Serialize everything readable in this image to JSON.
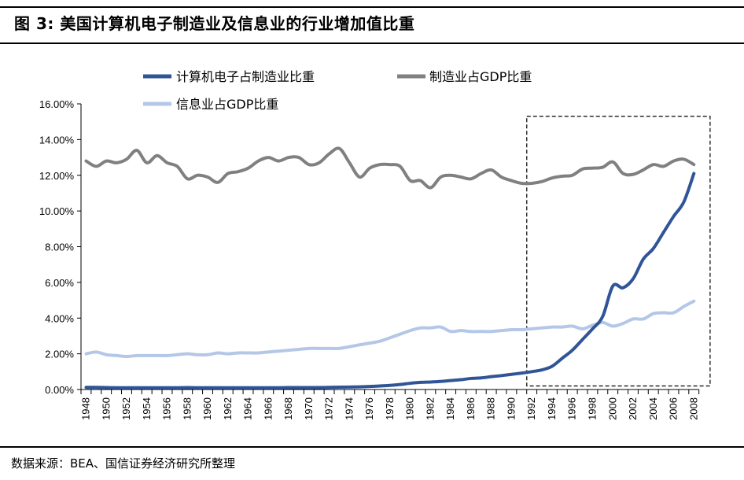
{
  "title": "图 3:  美国计算机电子制造业及信息业的行业增加值比重",
  "source": "数据来源：BEA、国信证券经济研究所整理",
  "chart_data": {
    "type": "line",
    "title": "图 3:  美国计算机电子制造业及信息业的行业增加值比重",
    "xlabel": "",
    "ylabel": "",
    "ylim": [
      0,
      16
    ],
    "y_ticks": [
      "0.00%",
      "2.00%",
      "4.00%",
      "6.00%",
      "8.00%",
      "10.00%",
      "12.00%",
      "14.00%",
      "16.00%"
    ],
    "x_tick_labels": [
      "1948",
      "1950",
      "1952",
      "1954",
      "1956",
      "1958",
      "1960",
      "1962",
      "1964",
      "1966",
      "1968",
      "1970",
      "1972",
      "1974",
      "1976",
      "1978",
      "1980",
      "1982",
      "1984",
      "1986",
      "1988",
      "1990",
      "1992",
      "1994",
      "1996",
      "1998",
      "2000",
      "2002",
      "2004",
      "2006",
      "2008"
    ],
    "x": [
      1948,
      1949,
      1950,
      1951,
      1952,
      1953,
      1954,
      1955,
      1956,
      1957,
      1958,
      1959,
      1960,
      1961,
      1962,
      1963,
      1964,
      1965,
      1966,
      1967,
      1968,
      1969,
      1970,
      1971,
      1972,
      1973,
      1974,
      1975,
      1976,
      1977,
      1978,
      1979,
      1980,
      1981,
      1982,
      1983,
      1984,
      1985,
      1986,
      1987,
      1988,
      1989,
      1990,
      1991,
      1992,
      1993,
      1994,
      1995,
      1996,
      1997,
      1998,
      1999,
      2000,
      2001,
      2002,
      2003,
      2004,
      2005,
      2006,
      2007,
      2008
    ],
    "grid": false,
    "legend_position": "top",
    "highlight_box": {
      "x_range": [
        1991.5,
        2009.6
      ],
      "y_range": [
        0.2,
        15.3
      ],
      "style": "dashed"
    },
    "series": [
      {
        "name": "计算机电子占制造业比重",
        "color": "#2f5597",
        "values": [
          0.12,
          0.12,
          0.11,
          0.1,
          0.1,
          0.1,
          0.1,
          0.1,
          0.1,
          0.1,
          0.11,
          0.1,
          0.1,
          0.1,
          0.1,
          0.1,
          0.1,
          0.1,
          0.1,
          0.1,
          0.11,
          0.11,
          0.11,
          0.11,
          0.12,
          0.13,
          0.14,
          0.15,
          0.17,
          0.2,
          0.23,
          0.28,
          0.35,
          0.4,
          0.42,
          0.45,
          0.5,
          0.55,
          0.62,
          0.65,
          0.72,
          0.78,
          0.85,
          0.92,
          1.0,
          1.1,
          1.3,
          1.75,
          2.2,
          2.8,
          3.4,
          4.1,
          5.8,
          5.7,
          6.2,
          7.3,
          7.9,
          8.8,
          9.7,
          10.5,
          12.1
        ]
      },
      {
        "name": "制造业占GDP比重",
        "color": "#808080",
        "values": [
          12.8,
          12.5,
          12.8,
          12.7,
          12.9,
          13.4,
          12.7,
          13.1,
          12.7,
          12.5,
          11.8,
          12.0,
          11.9,
          11.6,
          12.1,
          12.2,
          12.4,
          12.8,
          13.0,
          12.8,
          13.0,
          13.0,
          12.6,
          12.7,
          13.2,
          13.5,
          12.7,
          11.9,
          12.4,
          12.6,
          12.6,
          12.5,
          11.7,
          11.7,
          11.3,
          11.9,
          12.0,
          11.9,
          11.8,
          12.1,
          12.3,
          11.9,
          11.7,
          11.55,
          11.55,
          11.65,
          11.85,
          11.95,
          12.0,
          12.35,
          12.4,
          12.45,
          12.75,
          12.1,
          12.05,
          12.3,
          12.6,
          12.5,
          12.8,
          12.9,
          12.6
        ]
      },
      {
        "name": "信息业占GDP比重",
        "color": "#b4c7e7",
        "values": [
          2.0,
          2.1,
          1.95,
          1.9,
          1.85,
          1.9,
          1.9,
          1.9,
          1.9,
          1.95,
          2.0,
          1.95,
          1.95,
          2.05,
          2.0,
          2.05,
          2.05,
          2.05,
          2.1,
          2.15,
          2.2,
          2.25,
          2.3,
          2.3,
          2.3,
          2.3,
          2.4,
          2.5,
          2.6,
          2.7,
          2.9,
          3.1,
          3.3,
          3.45,
          3.45,
          3.5,
          3.25,
          3.3,
          3.25,
          3.25,
          3.25,
          3.3,
          3.35,
          3.35,
          3.4,
          3.45,
          3.5,
          3.5,
          3.55,
          3.4,
          3.6,
          3.75,
          3.55,
          3.7,
          3.95,
          3.95,
          4.25,
          4.3,
          4.3,
          4.65,
          4.95
        ]
      }
    ]
  }
}
